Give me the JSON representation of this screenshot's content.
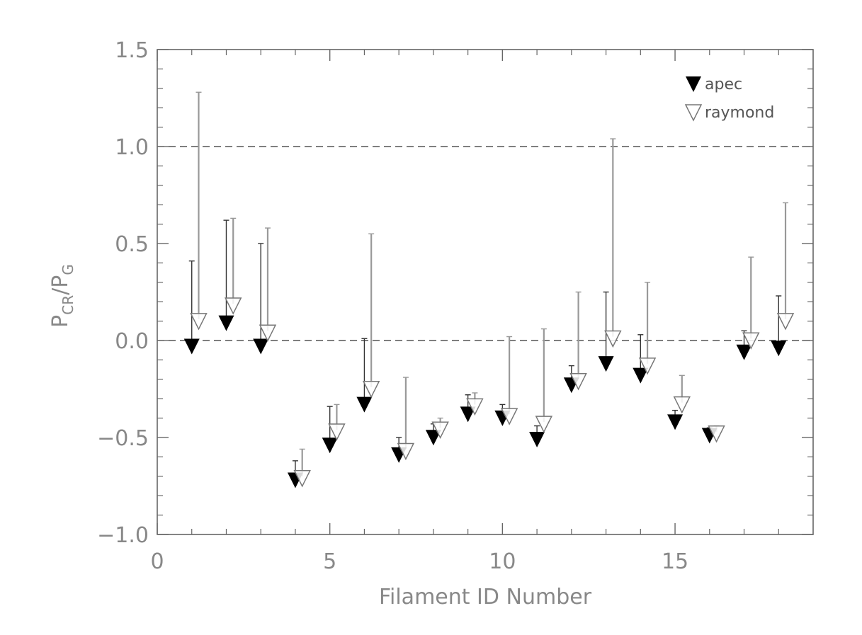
{
  "chart_data": {
    "type": "scatter",
    "title": "",
    "xlabel": "Filament ID Number",
    "ylabel": {
      "main": "P",
      "sub1": "CR",
      "sep": "/P",
      "sub2": "G"
    },
    "xlim": [
      0,
      19
    ],
    "ylim": [
      -1.0,
      1.5
    ],
    "x_ticks": [
      0,
      5,
      10,
      15
    ],
    "x_tick_labels": [
      "0",
      "5",
      "10",
      "15"
    ],
    "y_ticks": [
      -1.0,
      -0.5,
      0.0,
      0.5,
      1.0,
      1.5
    ],
    "y_tick_labels": [
      "−1.0",
      "−0.5",
      "0.0",
      "0.5",
      "1.0",
      "1.5"
    ],
    "reference_lines": [
      0.0,
      1.0
    ],
    "legend_position": "top-right",
    "series": [
      {
        "name": "apec",
        "marker": "filled-down-triangle",
        "color": "#000000",
        "line_color": "#333333",
        "points": [
          {
            "x": 1,
            "y": -0.02,
            "upper": 0.41
          },
          {
            "x": 2,
            "y": 0.1,
            "upper": 0.62
          },
          {
            "x": 3,
            "y": -0.02,
            "upper": 0.5
          },
          {
            "x": 4,
            "y": -0.71,
            "upper": -0.62
          },
          {
            "x": 5,
            "y": -0.53,
            "upper": -0.34
          },
          {
            "x": 6,
            "y": -0.32,
            "upper": 0.01
          },
          {
            "x": 7,
            "y": -0.58,
            "upper": -0.5
          },
          {
            "x": 8,
            "y": -0.49,
            "upper": -0.43
          },
          {
            "x": 9,
            "y": -0.37,
            "upper": -0.28
          },
          {
            "x": 10,
            "y": -0.39,
            "upper": -0.33
          },
          {
            "x": 11,
            "y": -0.5,
            "upper": -0.44
          },
          {
            "x": 12,
            "y": -0.22,
            "upper": -0.13
          },
          {
            "x": 13,
            "y": -0.11,
            "upper": 0.25
          },
          {
            "x": 14,
            "y": -0.17,
            "upper": 0.03
          },
          {
            "x": 15,
            "y": -0.41,
            "upper": -0.36
          },
          {
            "x": 16,
            "y": -0.48,
            "upper": -0.45
          },
          {
            "x": 17,
            "y": -0.05,
            "upper": 0.05
          },
          {
            "x": 18,
            "y": -0.03,
            "upper": 0.23
          }
        ]
      },
      {
        "name": "raymond",
        "marker": "open-down-triangle",
        "color": "#777777",
        "line_color": "#999999",
        "points": [
          {
            "x": 1.2,
            "y": 0.11,
            "upper": 1.28
          },
          {
            "x": 2.2,
            "y": 0.19,
            "upper": 0.63
          },
          {
            "x": 3.2,
            "y": 0.05,
            "upper": 0.58
          },
          {
            "x": 4.2,
            "y": -0.7,
            "upper": -0.56
          },
          {
            "x": 5.2,
            "y": -0.46,
            "upper": -0.33
          },
          {
            "x": 6.2,
            "y": -0.24,
            "upper": 0.55
          },
          {
            "x": 7.2,
            "y": -0.56,
            "upper": -0.19
          },
          {
            "x": 8.2,
            "y": -0.45,
            "upper": -0.4
          },
          {
            "x": 9.2,
            "y": -0.33,
            "upper": -0.27
          },
          {
            "x": 10.2,
            "y": -0.38,
            "upper": 0.02
          },
          {
            "x": 11.2,
            "y": -0.42,
            "upper": 0.06
          },
          {
            "x": 12.2,
            "y": -0.2,
            "upper": 0.25
          },
          {
            "x": 13.2,
            "y": 0.02,
            "upper": 1.04
          },
          {
            "x": 14.2,
            "y": -0.12,
            "upper": 0.3
          },
          {
            "x": 15.2,
            "y": -0.32,
            "upper": -0.18
          },
          {
            "x": 16.2,
            "y": -0.47,
            "upper": -0.44
          },
          {
            "x": 17.2,
            "y": 0.01,
            "upper": 0.43
          },
          {
            "x": 18.2,
            "y": 0.11,
            "upper": 0.71
          }
        ]
      }
    ]
  }
}
